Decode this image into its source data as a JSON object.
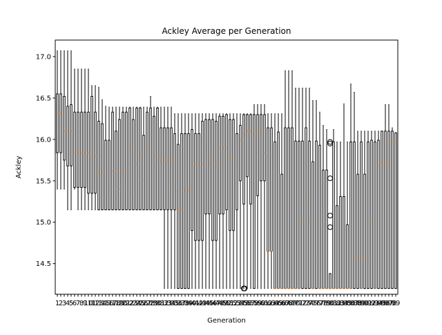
{
  "chart_data": {
    "type": "boxplot",
    "title": "Ackley Average per Generation",
    "xlabel": "Generation",
    "ylabel": "Ackley",
    "ylim": [
      14.13,
      17.2
    ],
    "yticks": [
      14.5,
      15.0,
      15.5,
      16.0,
      16.5,
      17.0
    ],
    "ytick_labels": [
      "14.5",
      "15.0",
      "15.5",
      "16.0",
      "16.5",
      "17.0"
    ],
    "grid": false,
    "legend": "none",
    "colors": {
      "box": "#000000",
      "median": "#ff7f0e",
      "flier": "#000000"
    },
    "categories": [
      "1",
      "2",
      "3",
      "4",
      "5",
      "6",
      "7",
      "8",
      "9",
      "10",
      "11",
      "12",
      "13",
      "14",
      "15",
      "16",
      "17",
      "18",
      "19",
      "20",
      "21",
      "22",
      "23",
      "24",
      "25",
      "26",
      "27",
      "28",
      "29",
      "30",
      "31",
      "32",
      "33",
      "34",
      "35",
      "36",
      "37",
      "38",
      "39",
      "40",
      "41",
      "42",
      "43",
      "44",
      "45",
      "46",
      "47",
      "48",
      "49",
      "50",
      "51",
      "52",
      "53",
      "54",
      "55",
      "56",
      "57",
      "58",
      "59",
      "60",
      "61",
      "62",
      "63",
      "64",
      "65",
      "66",
      "67",
      "68",
      "69",
      "70",
      "71",
      "72",
      "73",
      "74",
      "75",
      "76",
      "77",
      "78",
      "79",
      "80",
      "81",
      "82",
      "83",
      "84",
      "85",
      "86",
      "87",
      "88",
      "89",
      "90",
      "91",
      "92",
      "93",
      "94",
      "95",
      "96",
      "97",
      "98",
      "99"
    ],
    "boxes": [
      {
        "whislo": 15.4,
        "q1": 15.84,
        "med": 16.32,
        "q3": 16.55,
        "whishi": 17.07
      },
      {
        "whislo": 15.4,
        "q1": 15.84,
        "med": 16.32,
        "q3": 16.55,
        "whishi": 17.07
      },
      {
        "whislo": 15.4,
        "q1": 15.75,
        "med": 16.1,
        "q3": 16.52,
        "whishi": 17.07
      },
      {
        "whislo": 15.15,
        "q1": 15.68,
        "med": 16.1,
        "q3": 16.4,
        "whishi": 17.07
      },
      {
        "whislo": 15.15,
        "q1": 15.68,
        "med": 16.1,
        "q3": 16.42,
        "whishi": 17.07
      },
      {
        "whislo": 15.4,
        "q1": 15.42,
        "med": 15.84,
        "q3": 16.33,
        "whishi": 16.85
      },
      {
        "whislo": 15.15,
        "q1": 15.42,
        "med": 15.84,
        "q3": 16.33,
        "whishi": 16.85
      },
      {
        "whislo": 15.15,
        "q1": 15.42,
        "med": 15.84,
        "q3": 16.33,
        "whishi": 16.85
      },
      {
        "whislo": 15.15,
        "q1": 15.42,
        "med": 15.84,
        "q3": 16.33,
        "whishi": 16.85
      },
      {
        "whislo": 15.15,
        "q1": 15.35,
        "med": 15.84,
        "q3": 16.33,
        "whishi": 16.85
      },
      {
        "whislo": 15.15,
        "q1": 15.35,
        "med": 16.14,
        "q3": 16.52,
        "whishi": 16.65
      },
      {
        "whislo": 15.15,
        "q1": 15.35,
        "med": 15.8,
        "q3": 16.33,
        "whishi": 16.65
      },
      {
        "whislo": 15.15,
        "q1": 15.15,
        "med": 15.6,
        "q3": 16.22,
        "whishi": 16.63
      },
      {
        "whislo": 15.15,
        "q1": 15.15,
        "med": 15.6,
        "q3": 16.19,
        "whishi": 16.48
      },
      {
        "whislo": 15.15,
        "q1": 15.15,
        "med": 15.28,
        "q3": 15.99,
        "whishi": 16.4
      },
      {
        "whislo": 15.15,
        "q1": 15.15,
        "med": 15.4,
        "q3": 15.99,
        "whishi": 16.39
      },
      {
        "whislo": 15.15,
        "q1": 15.15,
        "med": 15.62,
        "q3": 16.33,
        "whishi": 16.39
      },
      {
        "whislo": 15.15,
        "q1": 15.15,
        "med": 15.28,
        "q3": 16.1,
        "whishi": 16.39
      },
      {
        "whislo": 15.15,
        "q1": 15.15,
        "med": 15.4,
        "q3": 16.24,
        "whishi": 16.39
      },
      {
        "whislo": 15.15,
        "q1": 15.15,
        "med": 15.62,
        "q3": 16.33,
        "whishi": 16.39
      },
      {
        "whislo": 15.15,
        "q1": 15.15,
        "med": 15.62,
        "q3": 16.33,
        "whishi": 16.39
      },
      {
        "whislo": 15.15,
        "q1": 15.15,
        "med": 15.9,
        "q3": 16.38,
        "whishi": 16.39
      },
      {
        "whislo": 15.15,
        "q1": 15.15,
        "med": 15.28,
        "q3": 16.24,
        "whishi": 16.39
      },
      {
        "whislo": 15.15,
        "q1": 15.15,
        "med": 15.7,
        "q3": 16.38,
        "whishi": 16.39
      },
      {
        "whislo": 15.15,
        "q1": 15.15,
        "med": 15.84,
        "q3": 16.38,
        "whishi": 16.39
      },
      {
        "whislo": 15.15,
        "q1": 15.15,
        "med": 15.5,
        "q3": 16.05,
        "whishi": 16.39
      },
      {
        "whislo": 15.15,
        "q1": 15.15,
        "med": 15.9,
        "q3": 16.33,
        "whishi": 16.39
      },
      {
        "whislo": 15.15,
        "q1": 15.15,
        "med": 15.84,
        "q3": 16.38,
        "whishi": 16.52
      },
      {
        "whislo": 15.15,
        "q1": 15.15,
        "med": 15.8,
        "q3": 16.28,
        "whishi": 16.39
      },
      {
        "whislo": 15.15,
        "q1": 15.15,
        "med": 15.75,
        "q3": 16.38,
        "whishi": 16.39
      },
      {
        "whislo": 15.15,
        "q1": 15.15,
        "med": 15.75,
        "q3": 16.14,
        "whishi": 16.39
      },
      {
        "whislo": 14.2,
        "q1": 15.15,
        "med": 15.75,
        "q3": 16.14,
        "whishi": 16.39
      },
      {
        "whislo": 14.2,
        "q1": 15.15,
        "med": 15.75,
        "q3": 16.14,
        "whishi": 16.39
      },
      {
        "whislo": 14.2,
        "q1": 15.15,
        "med": 15.75,
        "q3": 16.14,
        "whishi": 16.39
      },
      {
        "whislo": 14.2,
        "q1": 15.15,
        "med": 15.42,
        "q3": 16.07,
        "whishi": 16.31
      },
      {
        "whislo": 14.2,
        "q1": 14.2,
        "med": 15.15,
        "q3": 15.94,
        "whishi": 16.31
      },
      {
        "whislo": 14.2,
        "q1": 14.2,
        "med": 15.15,
        "q3": 16.07,
        "whishi": 16.31
      },
      {
        "whislo": 14.2,
        "q1": 14.2,
        "med": 15.38,
        "q3": 16.07,
        "whishi": 16.31
      },
      {
        "whislo": 14.2,
        "q1": 14.2,
        "med": 15.38,
        "q3": 16.07,
        "whishi": 16.31
      },
      {
        "whislo": 14.2,
        "q1": 14.9,
        "med": 15.7,
        "q3": 16.12,
        "whishi": 16.31
      },
      {
        "whislo": 14.2,
        "q1": 14.78,
        "med": 15.7,
        "q3": 16.07,
        "whishi": 16.31
      },
      {
        "whislo": 14.2,
        "q1": 14.78,
        "med": 15.7,
        "q3": 16.07,
        "whishi": 16.31
      },
      {
        "whislo": 14.2,
        "q1": 14.78,
        "med": 15.7,
        "q3": 16.22,
        "whishi": 16.31
      },
      {
        "whislo": 14.2,
        "q1": 15.1,
        "med": 15.9,
        "q3": 16.24,
        "whishi": 16.31
      },
      {
        "whislo": 14.2,
        "q1": 15.1,
        "med": 15.7,
        "q3": 16.24,
        "whishi": 16.31
      },
      {
        "whislo": 14.2,
        "q1": 14.78,
        "med": 15.78,
        "q3": 16.24,
        "whishi": 16.31
      },
      {
        "whislo": 14.2,
        "q1": 14.78,
        "med": 15.7,
        "q3": 16.22,
        "whishi": 16.31
      },
      {
        "whislo": 14.2,
        "q1": 15.1,
        "med": 15.9,
        "q3": 16.28,
        "whishi": 16.31
      },
      {
        "whislo": 14.2,
        "q1": 15.1,
        "med": 15.9,
        "q3": 16.28,
        "whishi": 16.31
      },
      {
        "whislo": 14.2,
        "q1": 15.15,
        "med": 15.9,
        "q3": 16.3,
        "whishi": 16.31
      },
      {
        "whislo": 14.2,
        "q1": 14.9,
        "med": 15.78,
        "q3": 16.24,
        "whishi": 16.31
      },
      {
        "whislo": 14.2,
        "q1": 14.9,
        "med": 15.78,
        "q3": 16.24,
        "whishi": 16.31
      },
      {
        "whislo": 14.2,
        "q1": 15.15,
        "med": 15.7,
        "q3": 16.07,
        "whishi": 16.31
      },
      {
        "whislo": 14.2,
        "q1": 15.5,
        "med": 16.0,
        "q3": 16.17,
        "whishi": 16.31
      },
      {
        "whislo": 14.2,
        "q1": 15.22,
        "med": 16.07,
        "q3": 16.3,
        "whishi": 16.31
      },
      {
        "whislo": 14.2,
        "q1": 15.55,
        "med": 16.1,
        "q3": 16.3,
        "whishi": 16.31
      },
      {
        "whislo": 14.2,
        "q1": 15.22,
        "med": 16.1,
        "q3": 16.3,
        "whishi": 16.31
      },
      {
        "whislo": 14.2,
        "q1": 14.2,
        "med": 16.07,
        "q3": 16.3,
        "whishi": 16.42
      },
      {
        "whislo": 14.2,
        "q1": 15.32,
        "med": 16.07,
        "q3": 16.3,
        "whishi": 16.42
      },
      {
        "whislo": 14.2,
        "q1": 15.5,
        "med": 16.07,
        "q3": 16.3,
        "whishi": 16.42
      },
      {
        "whislo": 14.2,
        "q1": 15.5,
        "med": 15.84,
        "q3": 16.3,
        "whishi": 16.42
      },
      {
        "whislo": 14.2,
        "q1": 14.65,
        "med": 14.65,
        "q3": 16.14,
        "whishi": 16.31
      },
      {
        "whislo": 14.2,
        "q1": 14.65,
        "med": 14.65,
        "q3": 16.14,
        "whishi": 16.31
      },
      {
        "whislo": 14.2,
        "q1": 14.2,
        "med": 14.2,
        "q3": 15.97,
        "whishi": 16.31
      },
      {
        "whislo": 14.2,
        "q1": 14.2,
        "med": 14.2,
        "q3": 16.09,
        "whishi": 16.31
      },
      {
        "whislo": 14.2,
        "q1": 14.2,
        "med": 14.2,
        "q3": 15.58,
        "whishi": 16.31
      },
      {
        "whislo": 14.2,
        "q1": 14.2,
        "med": 14.2,
        "q3": 16.14,
        "whishi": 16.83
      },
      {
        "whislo": 14.2,
        "q1": 14.2,
        "med": 14.2,
        "q3": 16.14,
        "whishi": 16.83
      },
      {
        "whislo": 14.2,
        "q1": 14.2,
        "med": 14.2,
        "q3": 16.14,
        "whishi": 16.83
      },
      {
        "whislo": 14.2,
        "q1": 14.2,
        "med": 14.2,
        "q3": 15.98,
        "whishi": 16.62
      },
      {
        "whislo": 14.2,
        "q1": 14.2,
        "med": 14.2,
        "q3": 15.98,
        "whishi": 16.62
      },
      {
        "whislo": 14.2,
        "q1": 14.2,
        "med": 15.0,
        "q3": 15.98,
        "whishi": 16.62
      },
      {
        "whislo": 14.2,
        "q1": 14.2,
        "med": 15.3,
        "q3": 16.14,
        "whishi": 16.62
      },
      {
        "whislo": 14.2,
        "q1": 14.2,
        "med": 15.0,
        "q3": 15.98,
        "whishi": 16.62
      },
      {
        "whislo": 14.2,
        "q1": 14.2,
        "med": 14.2,
        "q3": 15.73,
        "whishi": 16.47
      },
      {
        "whislo": 14.2,
        "q1": 14.2,
        "med": 14.55,
        "q3": 15.98,
        "whishi": 16.47
      },
      {
        "whislo": 14.2,
        "q1": 14.2,
        "med": 14.2,
        "q3": 15.93,
        "whishi": 16.33
      },
      {
        "whislo": 14.2,
        "q1": 14.2,
        "med": 14.2,
        "q3": 15.63,
        "whishi": 16.17
      },
      {
        "whislo": 14.2,
        "q1": 14.2,
        "med": 14.2,
        "q3": 15.63,
        "whishi": 16.12,
        "fliers": []
      },
      {
        "whislo": 14.2,
        "q1": 14.2,
        "med": 14.2,
        "q3": 14.38,
        "whishi": 14.38,
        "fliers": [
          15.97,
          15.95,
          15.53,
          15.08,
          14.94
        ]
      },
      {
        "whislo": 14.2,
        "q1": 14.2,
        "med": 14.2,
        "q3": 15.97,
        "whishi": 16.12
      },
      {
        "whislo": 14.2,
        "q1": 14.2,
        "med": 14.2,
        "q3": 15.2,
        "whishi": 15.97
      },
      {
        "whislo": 14.2,
        "q1": 14.2,
        "med": 14.2,
        "q3": 15.31,
        "whishi": 15.97
      },
      {
        "whislo": 14.2,
        "q1": 14.2,
        "med": 14.2,
        "q3": 15.31,
        "whishi": 16.43
      },
      {
        "whislo": 14.2,
        "q1": 14.2,
        "med": 14.2,
        "q3": 14.97,
        "whishi": 15.97
      },
      {
        "whislo": 14.2,
        "q1": 14.2,
        "med": 14.2,
        "q3": 15.97,
        "whishi": 16.67
      },
      {
        "whislo": 14.2,
        "q1": 14.2,
        "med": 14.57,
        "q3": 15.97,
        "whishi": 16.57
      },
      {
        "whislo": 14.2,
        "q1": 14.2,
        "med": 14.57,
        "q3": 15.58,
        "whishi": 16.1
      },
      {
        "whislo": 14.2,
        "q1": 14.2,
        "med": 14.2,
        "q3": 15.97,
        "whishi": 16.1
      },
      {
        "whislo": 14.2,
        "q1": 14.2,
        "med": 14.57,
        "q3": 15.58,
        "whishi": 16.1
      },
      {
        "whislo": 14.2,
        "q1": 14.2,
        "med": 14.57,
        "q3": 15.97,
        "whishi": 16.1
      },
      {
        "whislo": 14.2,
        "q1": 14.2,
        "med": 15.0,
        "q3": 15.99,
        "whishi": 16.1
      },
      {
        "whislo": 14.2,
        "q1": 14.2,
        "med": 14.2,
        "q3": 15.97,
        "whishi": 16.1
      },
      {
        "whislo": 14.2,
        "q1": 14.2,
        "med": 15.68,
        "q3": 15.99,
        "whishi": 16.1
      },
      {
        "whislo": 14.2,
        "q1": 14.2,
        "med": 15.72,
        "q3": 16.1,
        "whishi": 16.1
      },
      {
        "whislo": 14.2,
        "q1": 14.2,
        "med": 15.72,
        "q3": 16.1,
        "whishi": 16.42
      },
      {
        "whislo": 14.2,
        "q1": 14.2,
        "med": 15.72,
        "q3": 16.1,
        "whishi": 16.42
      },
      {
        "whislo": 14.2,
        "q1": 14.2,
        "med": 15.97,
        "q3": 16.1,
        "whishi": 16.14
      },
      {
        "whislo": 14.2,
        "q1": 14.2,
        "med": 15.97,
        "q3": 16.08,
        "whishi": 16.08
      }
    ],
    "extra_fliers": [
      {
        "category": "55",
        "value": 14.2
      }
    ]
  }
}
